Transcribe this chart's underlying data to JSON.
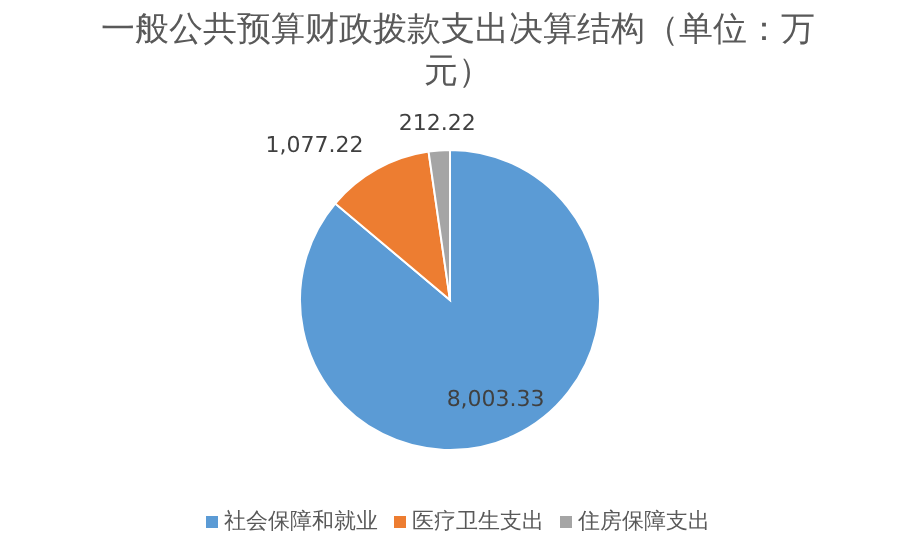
{
  "chart_data": {
    "type": "pie",
    "title": "一般公共预算财政拨款支出决算结构（单位：万元）",
    "categories": [
      "社会保障和就业",
      "医疗卫生支出",
      "住房保障支出"
    ],
    "values": [
      8003.33,
      1077.22,
      212.22
    ],
    "colors": [
      "#5b9bd5",
      "#ed7d31",
      "#a5a5a5"
    ],
    "value_labels": [
      "8,003.33",
      "1,077.22",
      "212.22"
    ],
    "legend": "bottom"
  }
}
